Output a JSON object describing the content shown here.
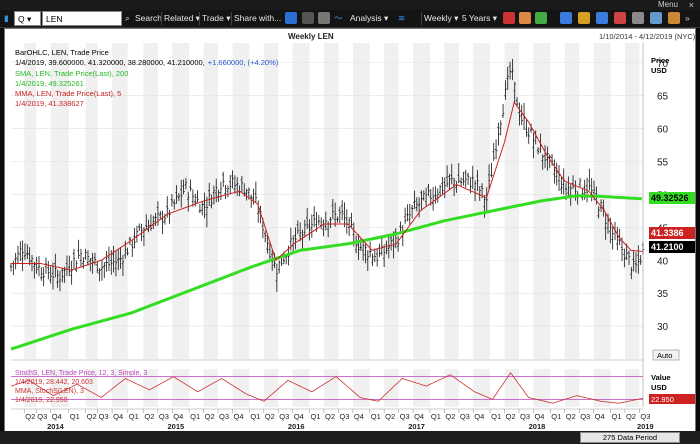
{
  "window": {
    "menu_label": "Menu",
    "close_glyph": "×"
  },
  "toolbar": {
    "symbol_mode": "Q",
    "symbol": "LEN",
    "search": "Search",
    "related": "Related ▾",
    "trade": "Trade ▾",
    "share": "Share with...",
    "analysis": "Analysis ▾",
    "weekly": "Weekly ▾",
    "range": "5 Years ▾",
    "icons": [
      "back-icon",
      "forward-icon",
      "camera-icon",
      "analysis-wave-icon",
      "bar-chart-icon",
      "line-chart-icon",
      "settings-icon"
    ]
  },
  "chart": {
    "title": "Weekly LEN",
    "date_range": "1/10/2014 - 4/12/2019 (NYC)",
    "legend": {
      "line1": "BarOHLC, LEN, Trade Price",
      "line2_values": "1/4/2019, 39.600000, 41.320000, 38.280000, 41.210000,",
      "line2_change": "+1.660000, (+4.20%)",
      "sma_label": "SMA, LEN, Trade Price(Last), 200",
      "sma_value": "1/4/2019, 49.325261",
      "mma_label": "MMA, LEN, Trade Price(Last), 5",
      "mma_value": "1/4/2019, 41.338627"
    },
    "axis_title": "Price\nUSD",
    "axis_title_1": "Price",
    "axis_title_2": "USD",
    "auto_label": "Auto",
    "badges": {
      "sma": "49.32526",
      "mma": "41.3386",
      "last": "41.2100"
    },
    "colors": {
      "bars": "#000000",
      "sma": "#33dd22",
      "mma": "#cc2222",
      "stoch": "#cc3333",
      "stoch_band": "#bb44bb",
      "badge_sma_bg": "#33dd22",
      "badge_mma_bg": "#cc2222",
      "badge_last_bg": "#000000"
    }
  },
  "stochastic": {
    "label": "StochS, LEN, Trade Price, 12, 3, Simple, 3",
    "value1": "1/4/2019, 28.442, 20.603",
    "mma_label": "MMA, StochS(LEN), 3",
    "mma_value": "1/4/2019, 22.950",
    "axis_title_1": "Value",
    "axis_title_2": "USD",
    "badge": "22.950"
  },
  "status": {
    "data_period": "275 Data Period"
  },
  "chart_data": {
    "type": "ohlc",
    "ylim": [
      25,
      73
    ],
    "yticks": [
      30,
      35,
      40,
      45,
      50,
      55,
      60,
      65,
      70
    ],
    "quarters": [
      {
        "label": "Q2",
        "x": 0.11
      },
      {
        "label": "Q3",
        "x": 0.21
      },
      {
        "label": "Q4",
        "x": 0.33
      },
      {
        "label": "Q1",
        "x": 0.48
      },
      {
        "label": "Q2",
        "x": 0.62
      },
      {
        "label": "Q3",
        "x": 0.72
      },
      {
        "label": "Q4",
        "x": 0.84
      },
      {
        "label": "Q1",
        "x": 0.97
      },
      {
        "label": "Q2",
        "x": 1.1
      },
      {
        "label": "Q3",
        "x": 1.22
      },
      {
        "label": "Q4",
        "x": 1.34
      },
      {
        "label": "Q1",
        "x": 1.48
      },
      {
        "label": "Q2",
        "x": 1.6
      },
      {
        "label": "Q3",
        "x": 1.72
      },
      {
        "label": "Q4",
        "x": 1.84
      },
      {
        "label": "Q1",
        "x": 1.98
      },
      {
        "label": "Q2",
        "x": 2.1
      },
      {
        "label": "Q3",
        "x": 2.22
      },
      {
        "label": "Q4",
        "x": 2.34
      },
      {
        "label": "Q1",
        "x": 2.48
      },
      {
        "label": "Q2",
        "x": 2.6
      },
      {
        "label": "Q3",
        "x": 2.72
      },
      {
        "label": "Q4",
        "x": 2.84
      },
      {
        "label": "Q1",
        "x": 2.98
      },
      {
        "label": "Q2",
        "x": 3.1
      },
      {
        "label": "Q3",
        "x": 3.22
      },
      {
        "label": "Q4",
        "x": 3.34
      },
      {
        "label": "Q1",
        "x": 3.48
      },
      {
        "label": "Q2",
        "x": 3.6
      },
      {
        "label": "Q3",
        "x": 3.72
      },
      {
        "label": "Q4",
        "x": 3.84
      },
      {
        "label": "Q1",
        "x": 3.98
      },
      {
        "label": "Q2",
        "x": 4.1
      },
      {
        "label": "Q3",
        "x": 4.22
      },
      {
        "label": "Q4",
        "x": 4.34
      },
      {
        "label": "Q1",
        "x": 4.48
      },
      {
        "label": "Q2",
        "x": 4.6
      },
      {
        "label": "Q3",
        "x": 4.72
      },
      {
        "label": "Q4",
        "x": 4.84
      },
      {
        "label": "Q1",
        "x": 4.98
      },
      {
        "label": "Q2",
        "x": 5.1
      },
      {
        "label": "Q3",
        "x": 5.22
      },
      {
        "label": "Q4",
        "x": 5.34
      },
      {
        "label": "Q1",
        "x": 5.48
      }
    ],
    "years": [
      {
        "label": "2014",
        "x": 0.3
      },
      {
        "label": "2015",
        "x": 1.3
      },
      {
        "label": "2016",
        "x": 2.3
      },
      {
        "label": "2017",
        "x": 3.3
      },
      {
        "label": "2018",
        "x": 4.3
      },
      {
        "label": "2019",
        "x": 5.2
      }
    ],
    "close_anchors": [
      [
        0,
        39
      ],
      [
        0.1,
        42
      ],
      [
        0.22,
        39
      ],
      [
        0.4,
        37.5
      ],
      [
        0.58,
        41
      ],
      [
        0.75,
        39
      ],
      [
        0.9,
        40
      ],
      [
        1.1,
        45
      ],
      [
        1.3,
        47
      ],
      [
        1.45,
        51
      ],
      [
        1.6,
        48
      ],
      [
        1.75,
        52
      ],
      [
        1.95,
        51
      ],
      [
        2.05,
        48
      ],
      [
        2.2,
        38.5
      ],
      [
        2.35,
        43
      ],
      [
        2.55,
        46
      ],
      [
        2.75,
        47
      ],
      [
        2.9,
        42
      ],
      [
        3.05,
        40.5
      ],
      [
        3.2,
        43
      ],
      [
        3.35,
        48
      ],
      [
        3.5,
        50
      ],
      [
        3.65,
        52
      ],
      [
        3.85,
        52
      ],
      [
        3.95,
        49
      ],
      [
        4.05,
        60
      ],
      [
        4.15,
        69
      ],
      [
        4.23,
        62
      ],
      [
        4.35,
        58
      ],
      [
        4.5,
        54
      ],
      [
        4.6,
        51
      ],
      [
        4.8,
        51
      ],
      [
        4.9,
        48
      ],
      [
        5.0,
        44
      ],
      [
        5.1,
        41
      ],
      [
        5.18,
        38.5
      ],
      [
        5.25,
        41.2
      ]
    ],
    "mma_anchors": [
      [
        0,
        39.5
      ],
      [
        0.25,
        39.5
      ],
      [
        0.5,
        38.5
      ],
      [
        0.75,
        40
      ],
      [
        1.0,
        43
      ],
      [
        1.3,
        47
      ],
      [
        1.6,
        49
      ],
      [
        1.9,
        50.5
      ],
      [
        2.05,
        48.5
      ],
      [
        2.2,
        40
      ],
      [
        2.35,
        42.5
      ],
      [
        2.6,
        45.5
      ],
      [
        2.8,
        45.5
      ],
      [
        3.0,
        41.5
      ],
      [
        3.2,
        42.5
      ],
      [
        3.4,
        47.5
      ],
      [
        3.7,
        51.5
      ],
      [
        3.95,
        49.5
      ],
      [
        4.1,
        58
      ],
      [
        4.18,
        64
      ],
      [
        4.3,
        61
      ],
      [
        4.45,
        56
      ],
      [
        4.6,
        52
      ],
      [
        4.8,
        50.5
      ],
      [
        4.93,
        47.5
      ],
      [
        5.05,
        43.5
      ],
      [
        5.15,
        41.5
      ],
      [
        5.25,
        41.34
      ]
    ],
    "sma_anchors": [
      [
        0,
        26.5
      ],
      [
        0.5,
        29.5
      ],
      [
        1.0,
        32
      ],
      [
        1.5,
        35.5
      ],
      [
        2.0,
        39
      ],
      [
        2.4,
        41.5
      ],
      [
        2.8,
        42.5
      ],
      [
        3.2,
        44
      ],
      [
        3.6,
        46
      ],
      [
        4.0,
        47.5
      ],
      [
        4.4,
        49
      ],
      [
        4.7,
        49.8
      ],
      [
        4.9,
        49.7
      ],
      [
        5.25,
        49.33
      ]
    ],
    "stoch_anchors": [
      [
        0,
        55
      ],
      [
        0.15,
        70
      ],
      [
        0.35,
        30
      ],
      [
        0.55,
        60
      ],
      [
        0.75,
        25
      ],
      [
        0.95,
        75
      ],
      [
        1.15,
        45
      ],
      [
        1.35,
        80
      ],
      [
        1.55,
        40
      ],
      [
        1.75,
        75
      ],
      [
        1.95,
        35
      ],
      [
        2.1,
        15
      ],
      [
        2.3,
        70
      ],
      [
        2.5,
        40
      ],
      [
        2.7,
        80
      ],
      [
        2.9,
        25
      ],
      [
        3.05,
        15
      ],
      [
        3.25,
        75
      ],
      [
        3.45,
        55
      ],
      [
        3.65,
        85
      ],
      [
        3.85,
        40
      ],
      [
        4.0,
        20
      ],
      [
        4.15,
        90
      ],
      [
        4.3,
        25
      ],
      [
        4.5,
        10
      ],
      [
        4.7,
        30
      ],
      [
        4.9,
        15
      ],
      [
        5.05,
        10
      ],
      [
        5.25,
        22.95
      ]
    ],
    "x_end": 5.25
  }
}
